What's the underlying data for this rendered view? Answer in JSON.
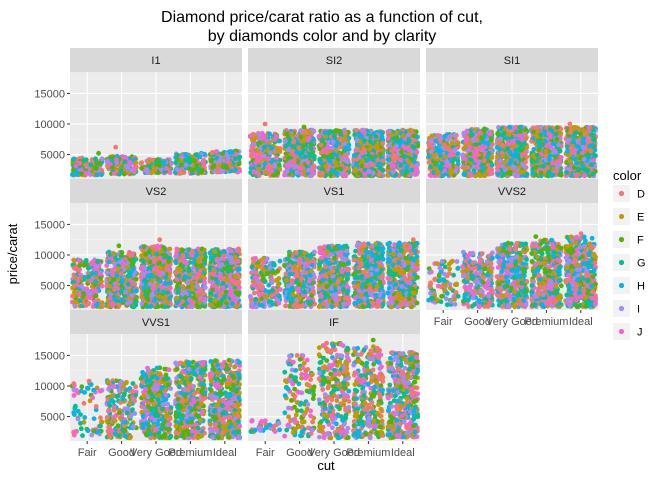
{
  "chart_data": {
    "type": "scatter",
    "title_line1": "Diamond price/carat ratio as a function of cut,",
    "title_line2": "by diamonds color and by clarity",
    "xlabel": "cut",
    "ylabel": "price/carat",
    "x_categories": [
      "Fair",
      "Good",
      "Very Good",
      "Premium",
      "Ideal"
    ],
    "y_ticks": [
      5000,
      10000,
      15000
    ],
    "y_tick_labels": [
      "5000",
      "10000",
      "15000"
    ],
    "ylim": [
      1000,
      18500
    ],
    "jitter": true,
    "grid": true,
    "legend": {
      "title": "color",
      "placement": "right",
      "entries": [
        "D",
        "E",
        "F",
        "G",
        "H",
        "I",
        "J"
      ],
      "colors": [
        "#F8766D",
        "#C49A00",
        "#53B400",
        "#00C094",
        "#00B6EB",
        "#A58AFF",
        "#FB61D7"
      ]
    },
    "facets": [
      {
        "label": "I1",
        "low": [
          1600,
          1800,
          2000,
          1900,
          2100
        ],
        "high": [
          4500,
          4800,
          4200,
          5200,
          5600
        ],
        "density": [
          0.3,
          0.35,
          0.3,
          0.4,
          0.4
        ],
        "outliers": [
          [
            1,
            6200
          ],
          [
            0,
            5200
          ]
        ]
      },
      {
        "label": "SI2",
        "low": [
          1500,
          1500,
          1500,
          1500,
          1500
        ],
        "high": [
          8500,
          9000,
          9000,
          9000,
          9000
        ],
        "density": [
          0.6,
          0.9,
          0.9,
          1.0,
          1.0
        ],
        "outliers": [
          [
            0,
            10000
          ],
          [
            1,
            9500
          ]
        ]
      },
      {
        "label": "SI1",
        "low": [
          1500,
          1500,
          1500,
          1500,
          1500
        ],
        "high": [
          8300,
          9200,
          9500,
          9500,
          9500
        ],
        "density": [
          0.6,
          0.9,
          1.0,
          1.0,
          1.0
        ],
        "outliers": [
          [
            4,
            10000
          ]
        ]
      },
      {
        "label": "VS2",
        "low": [
          1500,
          1500,
          1500,
          1500,
          1500
        ],
        "high": [
          9200,
          10500,
          11500,
          11000,
          11000
        ],
        "density": [
          0.5,
          0.9,
          1.0,
          1.0,
          1.0
        ],
        "outliers": [
          [
            2,
            12500
          ],
          [
            1,
            11500
          ]
        ]
      },
      {
        "label": "VS1",
        "low": [
          1500,
          1500,
          1500,
          1500,
          1500
        ],
        "high": [
          9500,
          10500,
          11500,
          12000,
          12000
        ],
        "density": [
          0.4,
          0.8,
          1.0,
          1.0,
          1.0
        ],
        "outliers": [
          [
            4,
            12500
          ]
        ]
      },
      {
        "label": "VVS2",
        "low": [
          1800,
          1500,
          1500,
          1500,
          1500
        ],
        "high": [
          9000,
          10500,
          12000,
          12500,
          13000
        ],
        "density": [
          0.2,
          0.5,
          0.9,
          0.9,
          1.0
        ],
        "outliers": [
          [
            4,
            13500
          ],
          [
            3,
            13000
          ]
        ]
      },
      {
        "label": "VVS1",
        "low": [
          1800,
          1500,
          1500,
          1500,
          1500
        ],
        "high": [
          10500,
          11000,
          13000,
          14000,
          14500
        ],
        "density": [
          0.15,
          0.4,
          0.8,
          0.9,
          1.0
        ],
        "outliers": [
          [
            0,
            10800
          ],
          [
            4,
            14200
          ]
        ]
      },
      {
        "label": "IF",
        "low": [
          2500,
          1800,
          1500,
          1500,
          1500
        ],
        "high": [
          4500,
          15000,
          17000,
          16500,
          15500
        ],
        "density": [
          0.08,
          0.3,
          0.6,
          0.7,
          0.9
        ],
        "outliers": [
          [
            2,
            17000
          ],
          [
            3,
            17500
          ],
          [
            1,
            15000
          ]
        ]
      }
    ]
  }
}
